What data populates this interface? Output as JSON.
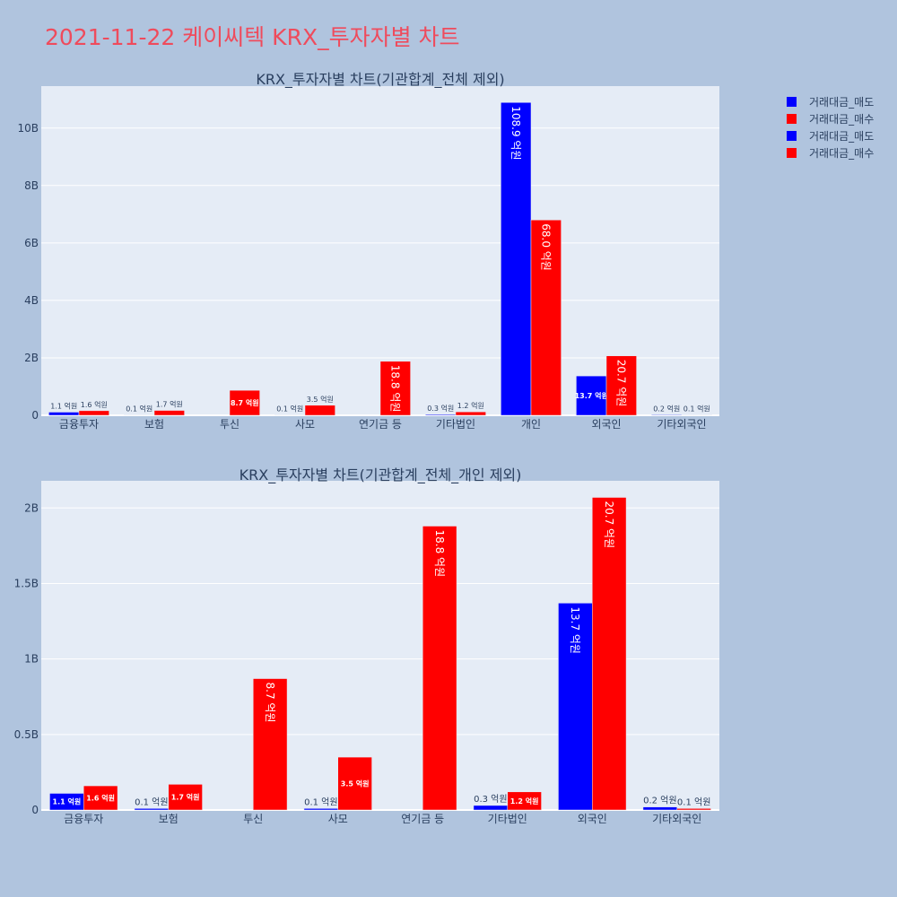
{
  "page_title": "2021-11-22 케이씨텍 KRX_투자자별 차트",
  "colors": {
    "sell": "#0000ff",
    "buy": "#ff0000",
    "plot_bg": "#e5ecf6",
    "paper_bg": "#b0c4de",
    "title": "#ef4b5c"
  },
  "legend": [
    "거래대금_매도",
    "거래대금_매수",
    "거래대금_매도",
    "거래대금_매수"
  ],
  "chart_data": [
    {
      "type": "bar",
      "title": "KRX_투자자별 차트(기관합계_전체 제외)",
      "categories": [
        "금융투자",
        "보험",
        "투신",
        "사모",
        "연기금 등",
        "기타법인",
        "개인",
        "외국인",
        "기타외국인"
      ],
      "series": [
        {
          "name": "거래대금_매도",
          "values": [
            0.11,
            0.01,
            0,
            0.01,
            0,
            0.03,
            10.89,
            1.37,
            0.02
          ],
          "labels": [
            "1.1 억원",
            "0.1 억원",
            "",
            "0.1 억원",
            "",
            "0.3 억원",
            "108.9 억원",
            "13.7 억원",
            "0.2 억원"
          ]
        },
        {
          "name": "거래대금_매수",
          "values": [
            0.16,
            0.17,
            0.87,
            0.35,
            1.88,
            0.12,
            6.8,
            2.07,
            0.01
          ],
          "labels": [
            "1.6 억원",
            "1.7 억원",
            "8.7 억원",
            "3.5 억원",
            "18.8 억원",
            "1.2 억원",
            "68.0 억원",
            "20.7 억원",
            "0.1 억원"
          ]
        }
      ],
      "yticks": [
        0,
        2,
        4,
        6,
        8,
        10
      ],
      "ytick_labels": [
        "0",
        "2B",
        "4B",
        "6B",
        "8B",
        "10B"
      ],
      "ylim": [
        0,
        11.46
      ],
      "legend": "top-right"
    },
    {
      "type": "bar",
      "title": "KRX_투자자별 차트(기관합계_전체_개인 제외)",
      "categories": [
        "금융투자",
        "보험",
        "투신",
        "사모",
        "연기금 등",
        "기타법인",
        "외국인",
        "기타외국인"
      ],
      "series": [
        {
          "name": "거래대금_매도",
          "values": [
            0.11,
            0.01,
            0,
            0.01,
            0,
            0.03,
            1.37,
            0.02
          ],
          "labels": [
            "1.1 억원",
            "0.1 억원",
            "",
            "0.1 억원",
            "",
            "0.3 억원",
            "13.7 억원",
            "0.2 억원"
          ]
        },
        {
          "name": "거래대금_매수",
          "values": [
            0.16,
            0.17,
            0.87,
            0.35,
            1.88,
            0.12,
            2.07,
            0.01
          ],
          "labels": [
            "1.6 억원",
            "1.7 억원",
            "8.7 억원",
            "3.5 억원",
            "18.8 억원",
            "1.2 억원",
            "20.7 억원",
            "0.1 억원"
          ]
        }
      ],
      "yticks": [
        0,
        0.5,
        1,
        1.5,
        2
      ],
      "ytick_labels": [
        "0",
        "0.5B",
        "1B",
        "1.5B",
        "2B"
      ],
      "ylim": [
        0,
        2.18
      ],
      "legend": "top-right"
    }
  ]
}
